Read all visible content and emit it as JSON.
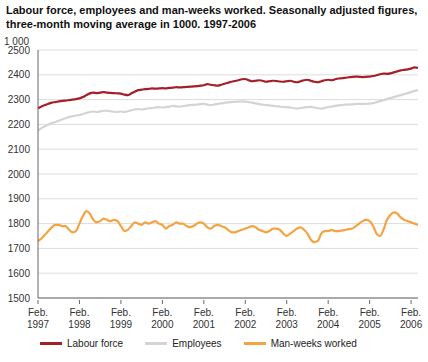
{
  "chart_data": {
    "type": "line",
    "title": "Labour force, employees and man-weeks worked. Seasonally adjusted figures, three-month moving average in 1000. 1997-2006",
    "ylabel": "1 000",
    "categories": [
      "Feb. 1997",
      null,
      null,
      null,
      null,
      null,
      null,
      null,
      null,
      null,
      null,
      null,
      "Feb. 1998",
      null,
      null,
      null,
      null,
      null,
      null,
      null,
      null,
      null,
      null,
      null,
      "Feb. 1999",
      null,
      null,
      null,
      null,
      null,
      null,
      null,
      null,
      null,
      null,
      null,
      "Feb. 2000",
      null,
      null,
      null,
      null,
      null,
      null,
      null,
      null,
      null,
      null,
      null,
      "Feb. 2001",
      null,
      null,
      null,
      null,
      null,
      null,
      null,
      null,
      null,
      null,
      null,
      "Feb. 2002",
      null,
      null,
      null,
      null,
      null,
      null,
      null,
      null,
      null,
      null,
      null,
      "Feb. 2003",
      null,
      null,
      null,
      null,
      null,
      null,
      null,
      null,
      null,
      null,
      null,
      "Feb. 2004",
      null,
      null,
      null,
      null,
      null,
      null,
      null,
      null,
      null,
      null,
      null,
      "Feb. 2005",
      null,
      null,
      null,
      null,
      null,
      null,
      null,
      null,
      null,
      null,
      null,
      "Feb. 2006",
      null,
      null
    ],
    "series": [
      {
        "name": "Labour force",
        "color": "#a31f2a",
        "values": [
          2265,
          2272,
          2278,
          2283,
          2288,
          2290,
          2293,
          2295,
          2296,
          2298,
          2300,
          2302,
          2305,
          2310,
          2318,
          2325,
          2328,
          2326,
          2328,
          2330,
          2328,
          2327,
          2326,
          2325,
          2324,
          2320,
          2318,
          2325,
          2332,
          2338,
          2340,
          2342,
          2343,
          2345,
          2344,
          2345,
          2346,
          2345,
          2347,
          2348,
          2350,
          2349,
          2350,
          2351,
          2352,
          2353,
          2354,
          2356,
          2358,
          2362,
          2360,
          2358,
          2356,
          2360,
          2364,
          2368,
          2372,
          2375,
          2378,
          2382,
          2383,
          2378,
          2374,
          2376,
          2378,
          2376,
          2372,
          2374,
          2376,
          2375,
          2373,
          2372,
          2374,
          2376,
          2372,
          2370,
          2374,
          2378,
          2380,
          2376,
          2372,
          2370,
          2374,
          2378,
          2380,
          2378,
          2382,
          2385,
          2386,
          2388,
          2390,
          2392,
          2393,
          2392,
          2391,
          2392,
          2393,
          2395,
          2398,
          2402,
          2405,
          2404,
          2406,
          2410,
          2414,
          2418,
          2420,
          2422,
          2425,
          2430,
          2428
        ]
      },
      {
        "name": "Employees",
        "color": "#d4d4d4",
        "values": [
          2175,
          2185,
          2192,
          2200,
          2205,
          2210,
          2215,
          2220,
          2225,
          2230,
          2233,
          2236,
          2238,
          2242,
          2246,
          2250,
          2252,
          2250,
          2252,
          2255,
          2255,
          2253,
          2251,
          2250,
          2252,
          2250,
          2253,
          2257,
          2260,
          2262,
          2260,
          2262,
          2265,
          2266,
          2268,
          2270,
          2268,
          2270,
          2272,
          2275,
          2273,
          2272,
          2274,
          2276,
          2278,
          2279,
          2280,
          2282,
          2283,
          2280,
          2278,
          2280,
          2283,
          2285,
          2287,
          2289,
          2290,
          2291,
          2292,
          2293,
          2292,
          2290,
          2288,
          2285,
          2282,
          2280,
          2278,
          2277,
          2275,
          2273,
          2272,
          2270,
          2270,
          2268,
          2266,
          2264,
          2266,
          2268,
          2270,
          2271,
          2268,
          2265,
          2264,
          2266,
          2270,
          2272,
          2275,
          2277,
          2278,
          2280,
          2280,
          2281,
          2282,
          2283,
          2282,
          2283,
          2284,
          2286,
          2290,
          2294,
          2298,
          2302,
          2306,
          2310,
          2314,
          2318,
          2322,
          2326,
          2330,
          2335,
          2338
        ]
      },
      {
        "name": "Man-weeks worked",
        "color": "#f4a340",
        "values": [
          1730,
          1740,
          1755,
          1770,
          1785,
          1795,
          1795,
          1790,
          1790,
          1775,
          1765,
          1770,
          1800,
          1830,
          1850,
          1840,
          1815,
          1805,
          1810,
          1820,
          1815,
          1810,
          1815,
          1810,
          1790,
          1770,
          1775,
          1790,
          1805,
          1800,
          1795,
          1805,
          1800,
          1805,
          1810,
          1800,
          1795,
          1780,
          1790,
          1795,
          1805,
          1800,
          1800,
          1790,
          1785,
          1790,
          1800,
          1805,
          1800,
          1785,
          1780,
          1790,
          1795,
          1790,
          1785,
          1775,
          1765,
          1765,
          1770,
          1775,
          1780,
          1785,
          1790,
          1785,
          1775,
          1770,
          1765,
          1770,
          1780,
          1780,
          1775,
          1760,
          1750,
          1760,
          1770,
          1780,
          1785,
          1775,
          1760,
          1735,
          1725,
          1730,
          1760,
          1770,
          1770,
          1775,
          1770,
          1770,
          1772,
          1775,
          1778,
          1780,
          1790,
          1800,
          1810,
          1815,
          1810,
          1790,
          1760,
          1750,
          1775,
          1815,
          1835,
          1845,
          1840,
          1825,
          1815,
          1810,
          1805,
          1800,
          1795
        ]
      }
    ],
    "ylim": [
      1500,
      2500
    ],
    "yticks": [
      1500,
      1600,
      1700,
      1800,
      1900,
      2000,
      2100,
      2200,
      2300,
      2400,
      2500
    ],
    "grid": true,
    "legend": "bottom"
  }
}
